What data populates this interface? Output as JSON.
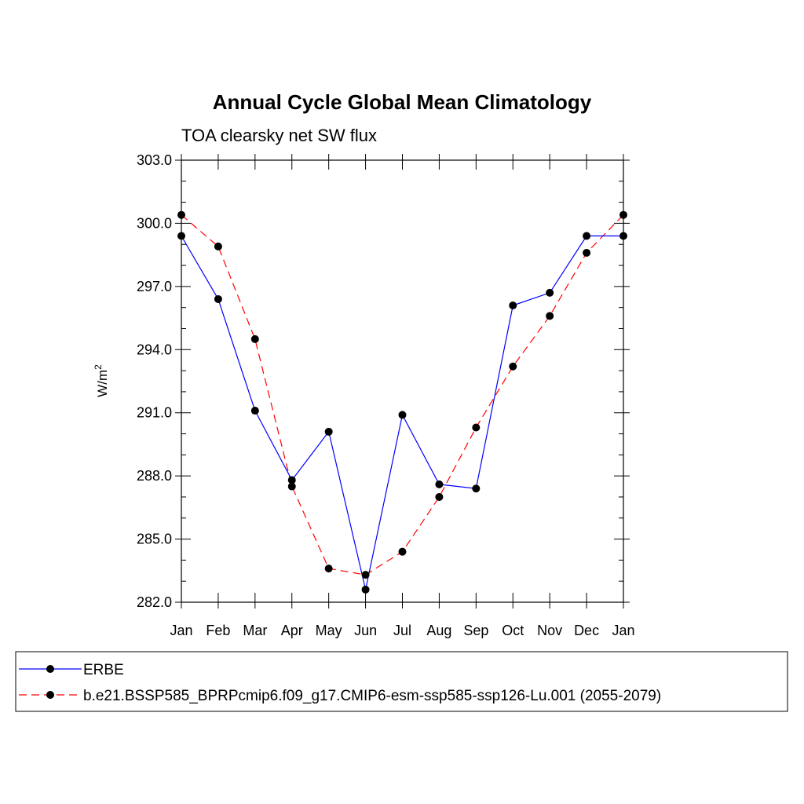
{
  "chart_data": {
    "type": "line",
    "title": "Annual Cycle Global Mean Climatology",
    "subtitle": "TOA clearsky net SW flux",
    "ylabel": "W/m",
    "ylabel_superscript": "2",
    "categories": [
      "Jan",
      "Feb",
      "Mar",
      "Apr",
      "May",
      "Jun",
      "Jul",
      "Aug",
      "Sep",
      "Oct",
      "Nov",
      "Dec",
      "Jan"
    ],
    "ylim": [
      282.0,
      303.0
    ],
    "yticks": [
      282.0,
      285.0,
      288.0,
      291.0,
      294.0,
      297.0,
      300.0,
      303.0
    ],
    "ytick_labels": [
      "282.0",
      "285.0",
      "288.0",
      "291.0",
      "294.0",
      "297.0",
      "300.0",
      "303.0"
    ],
    "grid": false,
    "legend_position": "bottom",
    "series": [
      {
        "name": "ERBE",
        "color": "#0000ff",
        "style": "solid",
        "values": [
          299.4,
          296.4,
          291.1,
          287.8,
          290.1,
          282.6,
          290.9,
          287.6,
          287.4,
          296.1,
          296.7,
          299.4,
          299.4
        ]
      },
      {
        "name": "b.e21.BSSP585_BPRPcmip6.f09_g17.CMIP6-esm-ssp585-ssp126-Lu.001 (2055-2079)",
        "color": "#ff0000",
        "style": "dashed",
        "values": [
          300.4,
          298.9,
          294.5,
          287.5,
          283.6,
          283.3,
          284.4,
          287.0,
          290.3,
          293.2,
          295.6,
          298.6,
          300.4
        ]
      }
    ]
  }
}
